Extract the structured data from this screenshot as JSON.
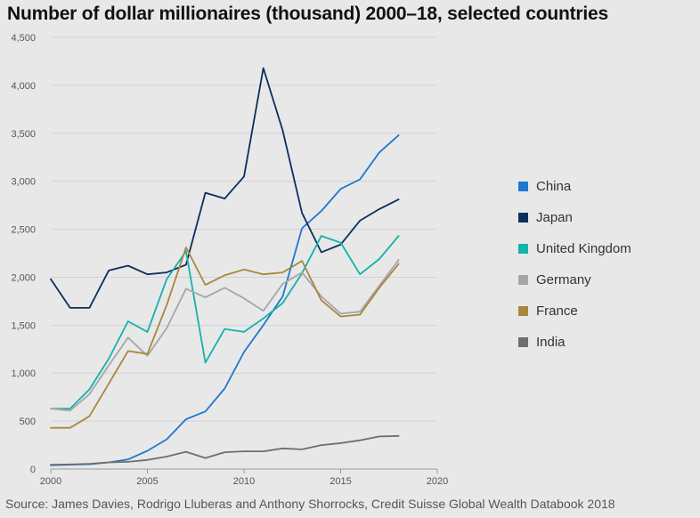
{
  "title": "Number of dollar millionaires (thousand) 2000–18, selected countries",
  "source": "Source: James Davies, Rodrigo Lluberas and Anthony Shorrocks, Credit Suisse Global Wealth Databook 2018",
  "chart_data": {
    "type": "line",
    "xlim": [
      2000,
      2020
    ],
    "ylim": [
      0,
      4500
    ],
    "x_ticks": [
      2000,
      2005,
      2010,
      2015,
      2020
    ],
    "x_tick_labels": [
      "2000",
      "2005",
      "2010",
      "2015",
      "2020"
    ],
    "y_ticks": [
      0,
      500,
      1000,
      1500,
      2000,
      2500,
      3000,
      3500,
      4000,
      4500
    ],
    "y_tick_labels": [
      "0",
      "500",
      "1,000",
      "1,500",
      "2,000",
      "2,500",
      "3,000",
      "3,500",
      "4,000",
      "4,500"
    ],
    "grid": "horizontal",
    "legend_position": "right",
    "x": [
      2000,
      2001,
      2002,
      2003,
      2004,
      2005,
      2006,
      2007,
      2008,
      2009,
      2010,
      2011,
      2012,
      2013,
      2014,
      2015,
      2016,
      2017,
      2018
    ],
    "series": [
      {
        "name": "China",
        "color": "#1f77cf",
        "values": [
          40,
          45,
          50,
          70,
          100,
          190,
          310,
          520,
          600,
          840,
          1220,
          1500,
          1800,
          2510,
          2690,
          2920,
          3020,
          3300,
          3480
        ]
      },
      {
        "name": "Japan",
        "color": "#0b2f5c",
        "values": [
          1980,
          1680,
          1680,
          2070,
          2120,
          2030,
          2050,
          2130,
          2880,
          2820,
          3050,
          4180,
          3530,
          2670,
          2260,
          2340,
          2590,
          2710,
          2810
        ]
      },
      {
        "name": "United Kingdom",
        "color": "#13b2ab",
        "values": [
          630,
          630,
          830,
          1150,
          1540,
          1430,
          1980,
          2270,
          1110,
          1460,
          1430,
          1570,
          1730,
          2040,
          2430,
          2360,
          2030,
          2190,
          2430
        ]
      },
      {
        "name": "Germany",
        "color": "#a6a6a8",
        "values": [
          630,
          610,
          780,
          1080,
          1370,
          1180,
          1470,
          1880,
          1790,
          1890,
          1780,
          1650,
          1930,
          2050,
          1800,
          1620,
          1640,
          1910,
          2180
        ]
      },
      {
        "name": "France",
        "color": "#a8873b",
        "values": [
          430,
          430,
          550,
          890,
          1230,
          1200,
          1710,
          2310,
          1920,
          2020,
          2080,
          2030,
          2050,
          2170,
          1760,
          1590,
          1610,
          1890,
          2140
        ]
      },
      {
        "name": "India",
        "color": "#6e6e6f",
        "values": [
          45,
          48,
          55,
          70,
          75,
          95,
          130,
          180,
          115,
          175,
          185,
          185,
          215,
          205,
          250,
          270,
          300,
          340,
          345
        ]
      }
    ]
  }
}
